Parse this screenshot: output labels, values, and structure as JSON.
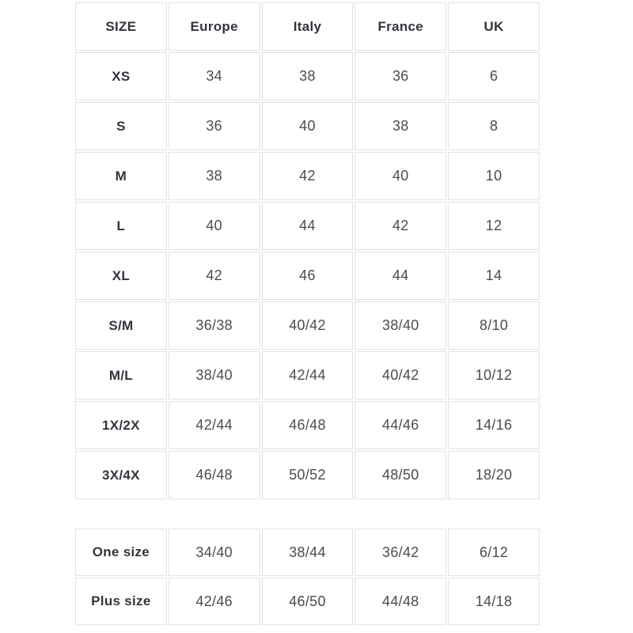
{
  "size_chart": {
    "main_table": {
      "headers": [
        "SIZE",
        "Europe",
        "Italy",
        "France",
        "UK"
      ],
      "rows": [
        {
          "label": "XS",
          "values": [
            "34",
            "38",
            "36",
            "6"
          ]
        },
        {
          "label": "S",
          "values": [
            "36",
            "40",
            "38",
            "8"
          ]
        },
        {
          "label": "M",
          "values": [
            "38",
            "42",
            "40",
            "10"
          ]
        },
        {
          "label": "L",
          "values": [
            "40",
            "44",
            "42",
            "12"
          ]
        },
        {
          "label": "XL",
          "values": [
            "42",
            "46",
            "44",
            "14"
          ]
        },
        {
          "label": "S/M",
          "values": [
            "36/38",
            "40/42",
            "38/40",
            "8/10"
          ]
        },
        {
          "label": "M/L",
          "values": [
            "38/40",
            "42/44",
            "40/42",
            "10/12"
          ]
        },
        {
          "label": "1X/2X",
          "values": [
            "42/44",
            "46/48",
            "44/46",
            "14/16"
          ]
        },
        {
          "label": "3X/4X",
          "values": [
            "46/48",
            "50/52",
            "48/50",
            "18/20"
          ]
        }
      ]
    },
    "extra_table": {
      "rows": [
        {
          "label": "One size",
          "values": [
            "34/40",
            "38/44",
            "36/42",
            "6/12"
          ]
        },
        {
          "label": "Plus size",
          "values": [
            "42/46",
            "46/50",
            "44/48",
            "14/18"
          ]
        }
      ]
    }
  },
  "colors": {
    "background": "#ffffff",
    "border": "#e2e2e2",
    "heading_text": "#35343d",
    "value_text": "#4c4b53"
  }
}
